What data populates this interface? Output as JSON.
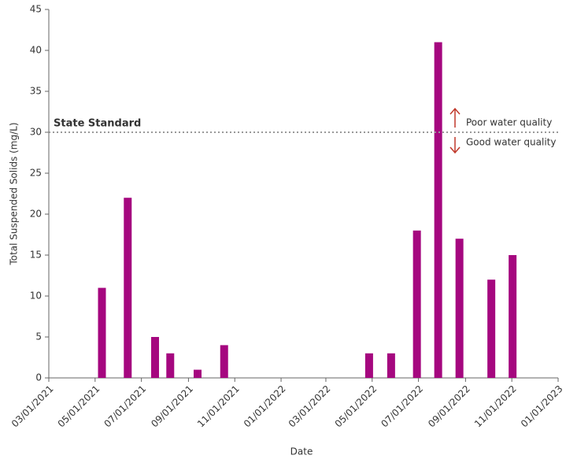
{
  "chart_data": {
    "type": "bar",
    "x": [
      "05/10/2021",
      "06/13/2021",
      "07/19/2021",
      "08/08/2021",
      "09/13/2021",
      "10/18/2021",
      "04/27/2022",
      "05/26/2022",
      "06/29/2022",
      "07/27/2022",
      "08/24/2022",
      "10/05/2022",
      "11/02/2022"
    ],
    "values": [
      11,
      22,
      5,
      3,
      1,
      4,
      3,
      3,
      18,
      41,
      17,
      12,
      15
    ],
    "color": "#a5077f",
    "xlim": [
      "03/01/2021",
      "01/01/2023"
    ],
    "xticks": [
      "03/01/2021",
      "05/01/2021",
      "07/01/2021",
      "09/01/2021",
      "11/01/2021",
      "01/01/2022",
      "03/01/2022",
      "05/01/2022",
      "07/01/2022",
      "09/01/2022",
      "11/01/2022",
      "01/01/2023"
    ],
    "ylim": [
      0,
      45
    ],
    "yticks": [
      0,
      5,
      10,
      15,
      20,
      25,
      30,
      35,
      40,
      45
    ],
    "x_label": "Date",
    "y_label": "Total Suspended Solids (mg/L)",
    "threshold": {
      "value": 30,
      "label": "State Standard"
    },
    "annotations": [
      "Poor water quality",
      "Good water quality"
    ]
  }
}
